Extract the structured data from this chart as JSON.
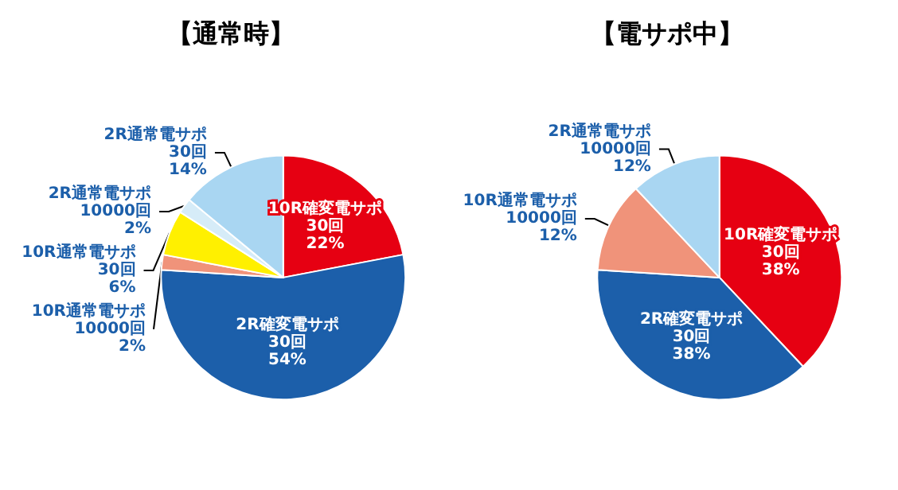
{
  "chart_data": [
    {
      "type": "pie",
      "title": "【通常時】",
      "categories": [
        "10R確変電サポ30回",
        "2R確変電サポ30回",
        "10R通常電サポ10000回",
        "10R通常電サポ30回",
        "2R通常電サポ10000回",
        "2R通常電サポ30回"
      ],
      "values": [
        22,
        54,
        2,
        6,
        2,
        14
      ],
      "value_labels": [
        "22%",
        "54%",
        "2%",
        "6%",
        "2%",
        "14%"
      ],
      "colors": [
        "#e60012",
        "#1c5faa",
        "#f0937a",
        "#fff000",
        "#d6ecf8",
        "#a9d6f2"
      ],
      "legend": false
    },
    {
      "type": "pie",
      "title": "【電サポ中】",
      "categories": [
        "10R確変電サポ30回",
        "2R確変電サポ30回",
        "10R通常電サポ10000回",
        "2R通常電サポ10000回"
      ],
      "values": [
        38,
        38,
        12,
        12
      ],
      "value_labels": [
        "38%",
        "38%",
        "12%",
        "12%"
      ],
      "colors": [
        "#e60012",
        "#1c5faa",
        "#f0937a",
        "#a9d6f2"
      ],
      "legend": false
    }
  ]
}
